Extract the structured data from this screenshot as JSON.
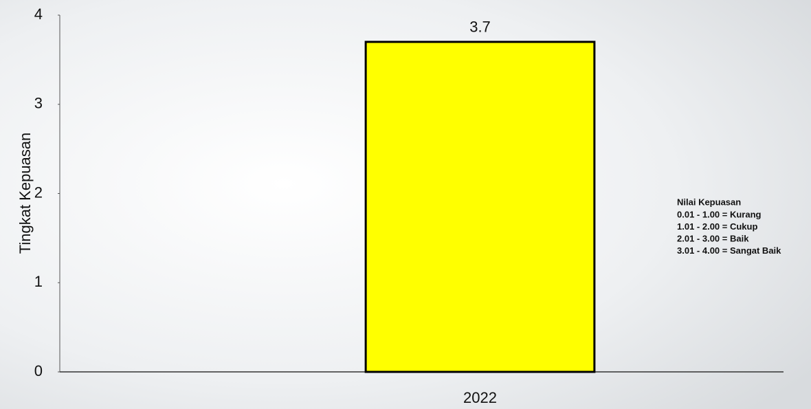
{
  "chart_data": {
    "type": "bar",
    "y_label": "Tingkat Kepuasan",
    "categories": [
      "2022"
    ],
    "values": [
      3.7
    ],
    "color": "#ffff00",
    "ylim": [
      0,
      4
    ],
    "yticks": [
      0,
      1,
      2,
      3,
      4
    ],
    "annotation": {
      "title": "Nilai Kepuasan",
      "lines": [
        "0.01 - 1.00 = Kurang",
        "1.01 - 2.00 = Cukup",
        "2.01 - 3.00 = Baik",
        "3.01 - 4.00 = Sangat Baik"
      ]
    }
  }
}
